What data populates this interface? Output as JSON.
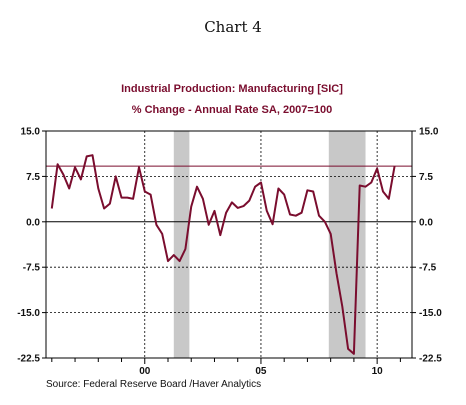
{
  "page": {
    "title": "Chart 4"
  },
  "chart_data": {
    "type": "line",
    "title": "Industrial Production: Manufacturing  [SIC]",
    "subtitle": "% Change - Annual Rate     SA, 2007=100",
    "source": "Source:  Federal Reserve Board /Haver Analytics",
    "ylim": [
      -22.5,
      15.0
    ],
    "yticks_left": [
      "15.0",
      "7.5",
      "0.0",
      "-7.5",
      "-15.0",
      "-22.5"
    ],
    "yticks_right": [
      "15.0",
      "7.5",
      "0.0",
      "-7.5",
      "-15.0",
      "-22.5"
    ],
    "ytick_values": [
      15.0,
      7.5,
      0.0,
      -7.5,
      -15.0,
      -22.5
    ],
    "xlim": [
      1995.75,
      2011.5
    ],
    "xtick_labels": [
      "00",
      "05",
      "10"
    ],
    "xtick_values": [
      2000,
      2005,
      2010
    ],
    "grid": true,
    "reference_line": 9.2,
    "recessions": [
      [
        2001.25,
        2001.92
      ],
      [
        2007.92,
        2009.5
      ]
    ],
    "series": [
      {
        "color": "#7a0d2e",
        "x": [
          1996.0,
          1996.25,
          1996.5,
          1996.75,
          1997.0,
          1997.25,
          1997.5,
          1997.75,
          1998.0,
          1998.25,
          1998.5,
          1998.75,
          1999.0,
          1999.25,
          1999.5,
          1999.75,
          2000.0,
          2000.25,
          2000.5,
          2000.75,
          2001.0,
          2001.25,
          2001.5,
          2001.75,
          2002.0,
          2002.25,
          2002.5,
          2002.75,
          2003.0,
          2003.25,
          2003.5,
          2003.75,
          2004.0,
          2004.25,
          2004.5,
          2004.75,
          2005.0,
          2005.25,
          2005.5,
          2005.75,
          2006.0,
          2006.25,
          2006.5,
          2006.75,
          2007.0,
          2007.25,
          2007.5,
          2007.75,
          2008.0,
          2008.25,
          2008.5,
          2008.75,
          2009.0,
          2009.25,
          2009.5,
          2009.75,
          2010.0,
          2010.25,
          2010.5,
          2010.75
        ],
        "y": [
          2.2,
          9.5,
          7.8,
          5.5,
          9.0,
          7.0,
          10.8,
          11.0,
          5.5,
          2.2,
          3.0,
          7.5,
          4.0,
          4.0,
          3.8,
          9.0,
          5.0,
          4.5,
          -0.5,
          -2.0,
          -6.5,
          -5.5,
          -6.5,
          -4.5,
          2.5,
          5.8,
          3.8,
          -0.5,
          1.8,
          -2.2,
          1.5,
          3.2,
          2.3,
          2.6,
          3.5,
          5.8,
          6.5,
          1.8,
          -0.4,
          5.5,
          4.5,
          1.2,
          1.0,
          1.5,
          5.2,
          5.0,
          1.0,
          0.0,
          -2.0,
          -8.5,
          -14.0,
          -21.0,
          -21.8,
          6.0,
          5.8,
          6.5,
          8.8,
          5.0,
          3.8,
          9.2
        ]
      }
    ]
  }
}
